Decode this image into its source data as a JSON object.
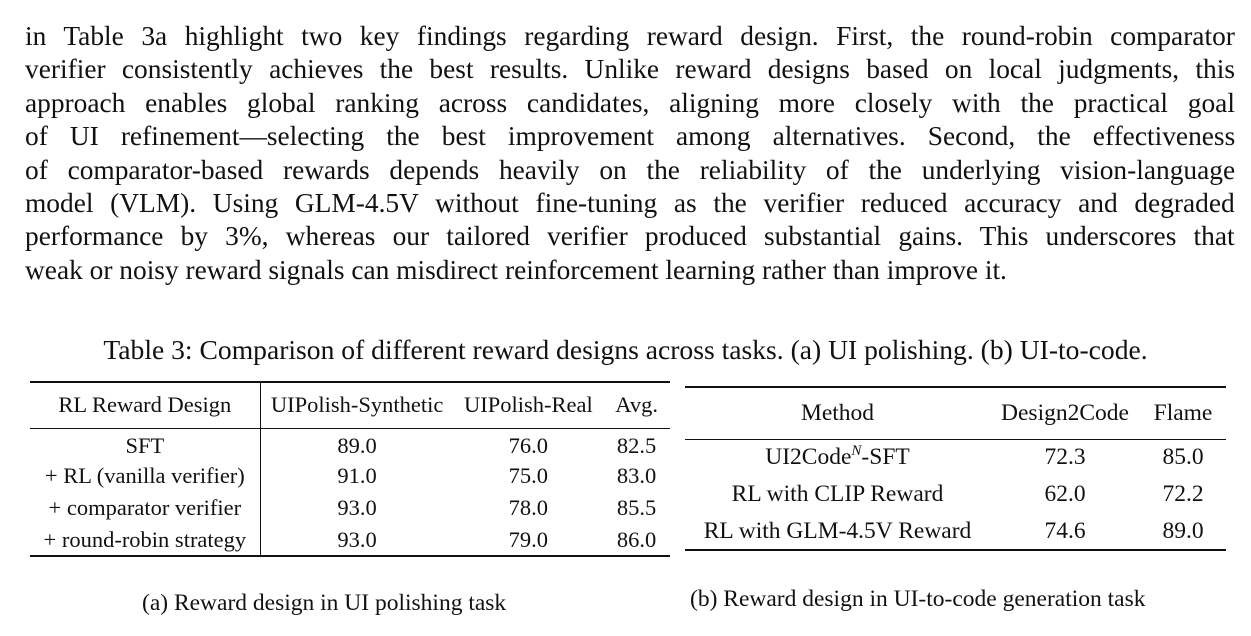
{
  "paragraph": [
    "in Table 3a highlight two key findings regarding reward design. First, the round-robin comparator",
    "verifier consistently achieves the best results. Unlike reward designs based on local judgments, this",
    "approach enables global ranking across candidates, aligning more closely with the practical goal",
    "of UI refinement—selecting the best improvement among alternatives. Second, the effectiveness",
    "of comparator-based rewards depends heavily on the reliability of the underlying vision-language",
    "model (VLM). Using GLM-4.5V without fine-tuning as the verifier reduced accuracy and degraded",
    "performance by 3%, whereas our tailored verifier produced substantial gains. This underscores that",
    "weak or noisy reward signals can misdirect reinforcement learning rather than improve it."
  ],
  "table_caption": "Table 3: Comparison of different reward designs across tasks. (a) UI polishing. (b) UI-to-code.",
  "table_a": {
    "headers": [
      "RL Reward Design",
      "UIPolish-Synthetic",
      "UIPolish-Real",
      "Avg."
    ],
    "rows": [
      [
        "SFT",
        "89.0",
        "76.0",
        "82.5"
      ],
      [
        "+ RL (vanilla verifier)",
        "91.0",
        "75.0",
        "83.0"
      ],
      [
        "+ comparator verifier",
        "93.0",
        "78.0",
        "85.5"
      ],
      [
        "+ round-robin strategy",
        "93.0",
        "79.0",
        "86.0"
      ]
    ],
    "caption": "(a) Reward design in UI polishing task"
  },
  "table_b": {
    "headers": [
      "Method",
      "Design2Code",
      "Flame"
    ],
    "rows": [
      {
        "method": "UI2Code",
        "sup": "N",
        "suffix": "-SFT",
        "d2c": "72.3",
        "flame": "85.0"
      },
      {
        "method": "RL with CLIP Reward",
        "sup": "",
        "suffix": "",
        "d2c": "62.0",
        "flame": "72.2"
      },
      {
        "method": "RL with GLM-4.5V Reward",
        "sup": "",
        "suffix": "",
        "d2c": "74.6",
        "flame": "89.0"
      }
    ],
    "caption": "(b) Reward design in UI-to-code generation task"
  }
}
